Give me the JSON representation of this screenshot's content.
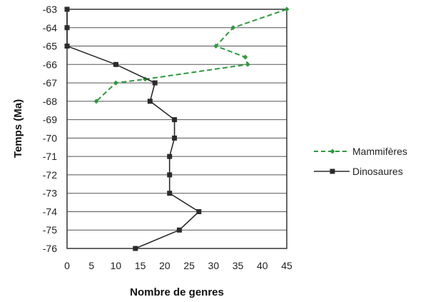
{
  "chart_data": {
    "type": "line",
    "xlabel": "Nombre de genres",
    "ylabel": "Temps (Ma)",
    "xlim": [
      0,
      45
    ],
    "ylim": [
      -76,
      -63
    ],
    "x_ticks": [
      "0",
      "5",
      "10",
      "15",
      "20",
      "25",
      "30",
      "35",
      "40",
      "45"
    ],
    "y_ticks": [
      "-63",
      "-64",
      "-65",
      "-66",
      "-67",
      "-68",
      "-69",
      "-70",
      "-71",
      "-72",
      "-73",
      "-74",
      "-75",
      "-76"
    ],
    "grid": "horizontal",
    "legend_position": "right",
    "series": [
      {
        "name": "Mammifères",
        "color": "#2e9a3e",
        "style": "dashed",
        "marker": "diamond",
        "points": [
          {
            "x": 45,
            "y": -63
          },
          {
            "x": 34,
            "y": -64
          },
          {
            "x": 30.5,
            "y": -65
          },
          {
            "x": 36.5,
            "y": -65.6
          },
          {
            "x": 37,
            "y": -66
          },
          {
            "x": 16,
            "y": -66.8
          },
          {
            "x": 10,
            "y": -67
          },
          {
            "x": 6,
            "y": -68
          }
        ]
      },
      {
        "name": "Dinosaures",
        "color": "#2b2b2b",
        "style": "solid",
        "marker": "square",
        "points": [
          {
            "x": 0,
            "y": -63
          },
          {
            "x": 0,
            "y": -64
          },
          {
            "x": 0,
            "y": -65
          },
          {
            "x": 10,
            "y": -66
          },
          {
            "x": 18,
            "y": -67
          },
          {
            "x": 17,
            "y": -68
          },
          {
            "x": 22,
            "y": -69
          },
          {
            "x": 22,
            "y": -70
          },
          {
            "x": 21,
            "y": -71
          },
          {
            "x": 21,
            "y": -72
          },
          {
            "x": 21,
            "y": -73
          },
          {
            "x": 27,
            "y": -74
          },
          {
            "x": 23,
            "y": -75
          },
          {
            "x": 14,
            "y": -76
          }
        ]
      }
    ]
  }
}
